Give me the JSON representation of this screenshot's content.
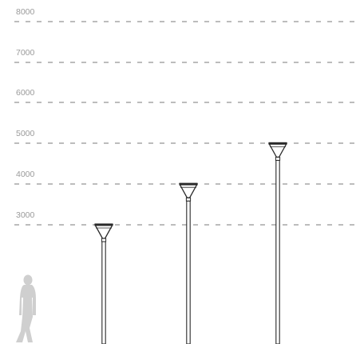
{
  "diagram": {
    "height_levels": [
      {
        "label": "8000",
        "value": 8000
      },
      {
        "label": "7000",
        "value": 7000
      },
      {
        "label": "6000",
        "value": 6000
      },
      {
        "label": "5000",
        "value": 5000
      },
      {
        "label": "4000",
        "value": 4000
      },
      {
        "label": "3000",
        "value": 3000
      }
    ],
    "poles": [
      {
        "height": 3000
      },
      {
        "height": 4000
      },
      {
        "height": 5000
      }
    ],
    "colors": {
      "grid": "#7a7a7a",
      "tick_text": "#9a9a9a",
      "pole": "#2a2a2a",
      "figure": "#cfcfcf"
    },
    "figure_icon": "standing-person-silhouette"
  }
}
